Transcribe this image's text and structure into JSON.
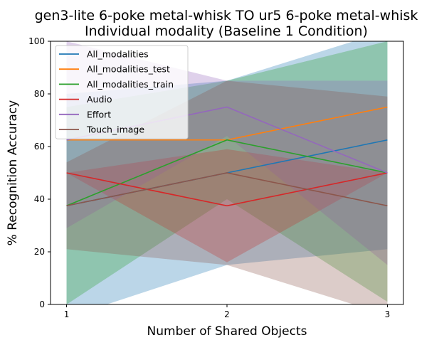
{
  "chart_data": {
    "type": "line",
    "title": "gen3-lite 6-poke metal-whisk TO ur5 6-poke metal-whisk",
    "subtitle": "Individual modality (Baseline 1 Condition)",
    "xlabel": "Number of Shared Objects",
    "ylabel": "% Recognition Accuracy",
    "x": [
      1,
      2,
      3
    ],
    "xlim": [
      0.9,
      3.1
    ],
    "ylim": [
      0,
      100
    ],
    "xticks": [
      1,
      2,
      3
    ],
    "yticks": [
      0,
      20,
      40,
      60,
      80,
      100
    ],
    "grid": false,
    "legend_position": "upper-left",
    "series": [
      {
        "name": "All_modalities",
        "color": "#1f77b4",
        "values": [
          37.5,
          50.0,
          62.5
        ],
        "band_lower": [
          -5,
          15,
          21
        ],
        "band_upper": [
          80,
          85,
          104
        ]
      },
      {
        "name": "All_modalities_test",
        "color": "#ff7f0e",
        "values": [
          62.5,
          62.5,
          75.0
        ],
        "band_lower": [
          62.5,
          62.5,
          75.0
        ],
        "band_upper": [
          62.5,
          62.5,
          75.0
        ]
      },
      {
        "name": "All_modalities_train",
        "color": "#2ca02c",
        "values": [
          37.5,
          62.5,
          50.0
        ],
        "band_lower": [
          0,
          40,
          1
        ],
        "band_upper": [
          75,
          85,
          100
        ]
      },
      {
        "name": "Audio",
        "color": "#d62728",
        "values": [
          50.0,
          37.5,
          50.0
        ],
        "band_lower": [
          50,
          16,
          50
        ],
        "band_upper": [
          50,
          59,
          50
        ]
      },
      {
        "name": "Effort",
        "color": "#9467bd",
        "values": [
          62.5,
          75.0,
          50.0
        ],
        "band_lower": [
          29,
          64,
          15
        ],
        "band_upper": [
          100,
          85,
          85
        ]
      },
      {
        "name": "Touch_image",
        "color": "#8c564b",
        "values": [
          37.5,
          50.0,
          37.5
        ],
        "band_lower": [
          21,
          15,
          -4
        ],
        "band_upper": [
          54,
          85,
          79
        ]
      }
    ]
  }
}
